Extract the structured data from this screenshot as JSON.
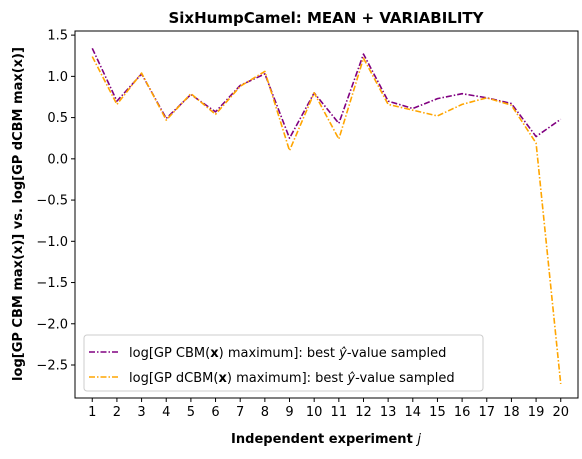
{
  "chart_data": {
    "type": "line",
    "title": "SixHumpCamel: MEAN + VARIABILITY",
    "xlabel": "Independent experiment j",
    "ylabel": "log[GP CBM max(x)] vs. log[GP dCBM max(x)]",
    "x": [
      1,
      2,
      3,
      4,
      5,
      6,
      7,
      8,
      9,
      10,
      11,
      12,
      13,
      14,
      15,
      16,
      17,
      18,
      19,
      20
    ],
    "xlim": [
      0.3,
      20.7
    ],
    "ylim": [
      -2.9,
      1.55
    ],
    "yticks": [
      1.5,
      1.0,
      0.5,
      0.0,
      -0.5,
      -1.0,
      -1.5,
      -2.0,
      -2.5
    ],
    "ytick_labels": [
      "1.5",
      "1.0",
      "0.5",
      "0.0",
      "−0.5",
      "−1.0",
      "−1.5",
      "−2.0",
      "−2.5"
    ],
    "grid": false,
    "legend_position": "lower-left",
    "series": [
      {
        "name": "log[GP CBM(x) maximum]: best ŷ-value sampled",
        "color": "#800080",
        "values": [
          1.34,
          0.7,
          1.03,
          0.49,
          0.78,
          0.57,
          0.89,
          1.03,
          0.25,
          0.8,
          0.43,
          1.27,
          0.7,
          0.61,
          0.73,
          0.79,
          0.74,
          0.67,
          0.27,
          0.48
        ]
      },
      {
        "name": "log[GP dCBM(x) maximum]: best ŷ-value sampled",
        "color": "#ffa500",
        "values": [
          1.24,
          0.66,
          1.04,
          0.47,
          0.79,
          0.54,
          0.88,
          1.06,
          0.1,
          0.8,
          0.24,
          1.22,
          0.66,
          0.59,
          0.52,
          0.66,
          0.74,
          0.65,
          0.19,
          -2.73
        ]
      }
    ]
  }
}
